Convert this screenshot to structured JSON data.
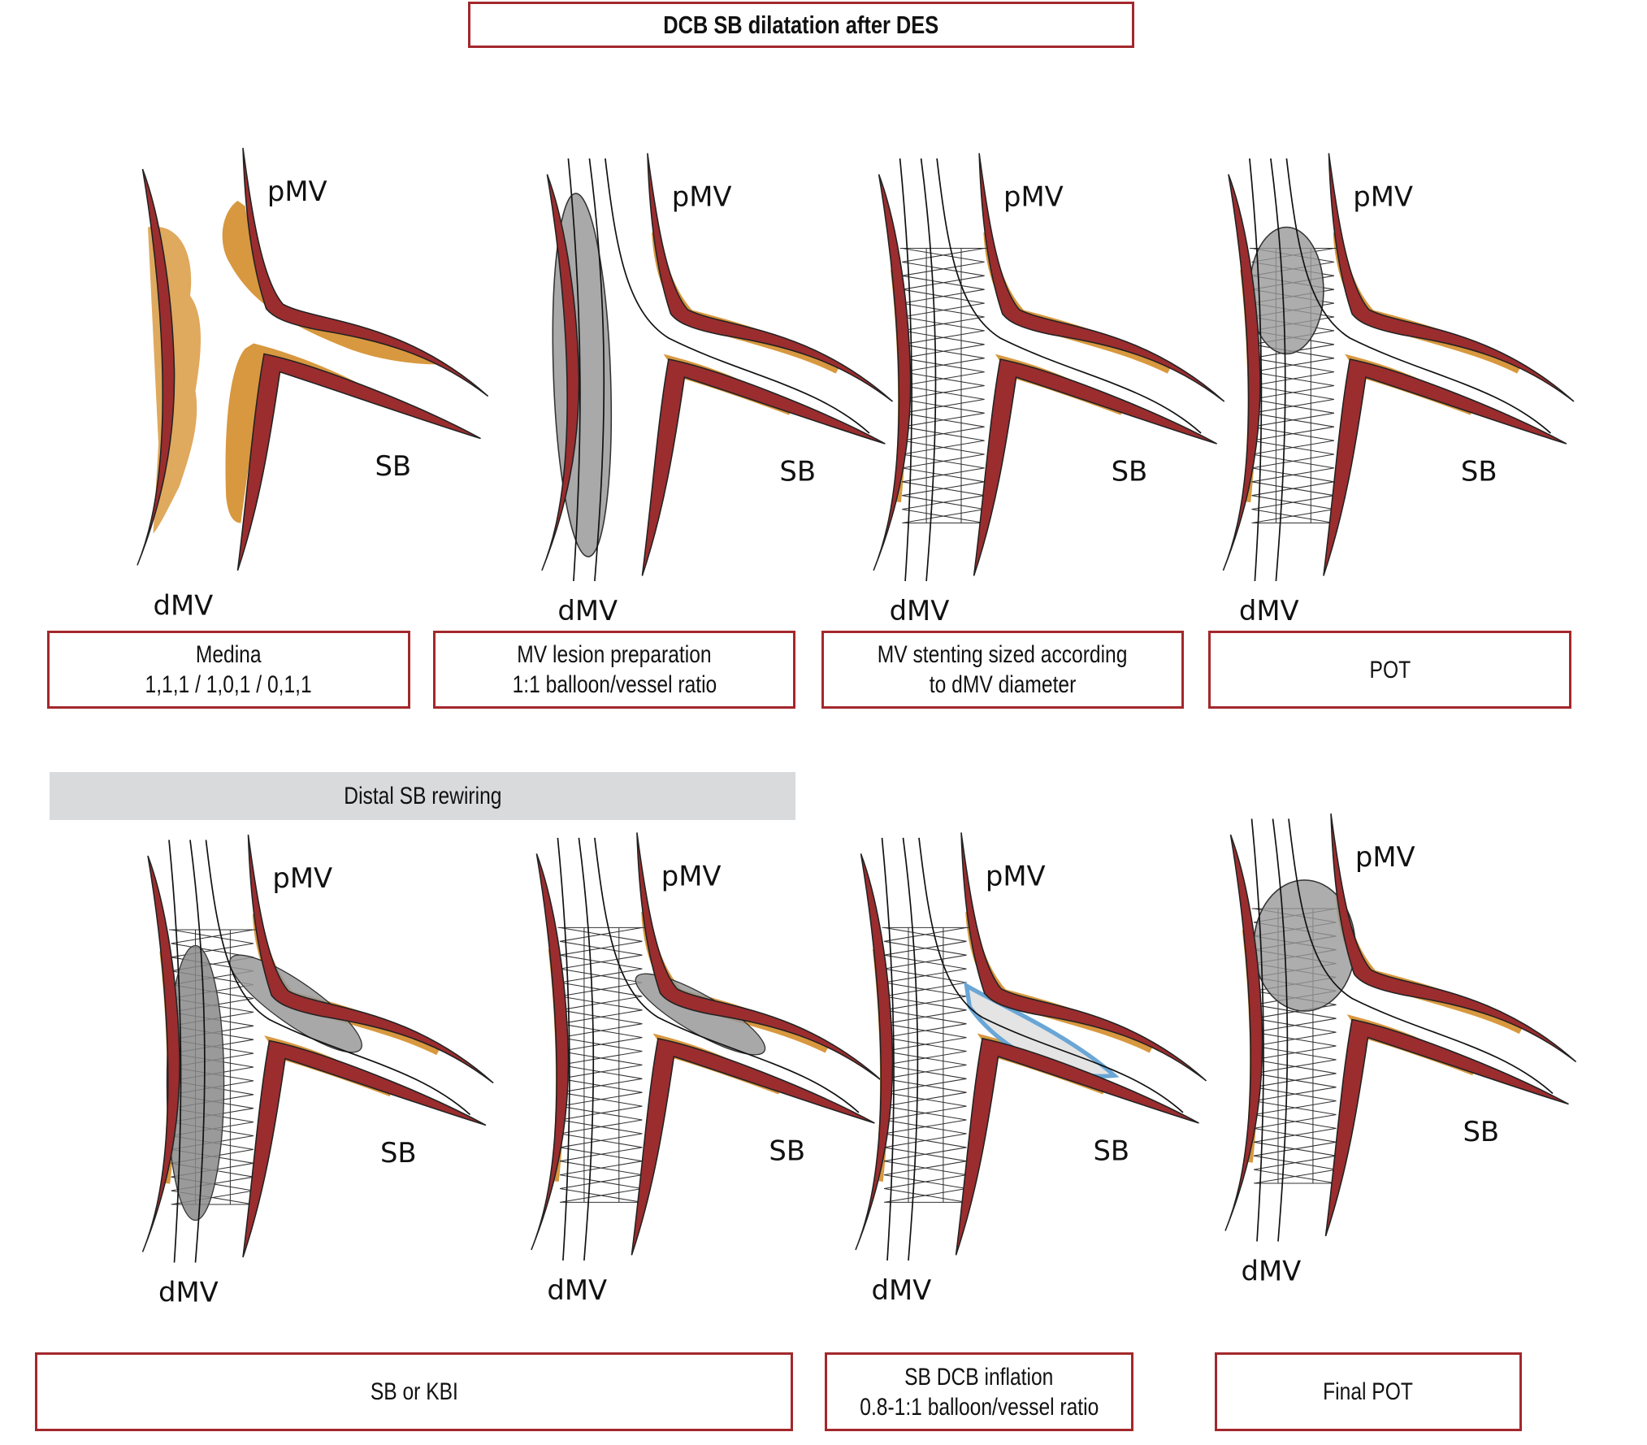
{
  "title": "DCB SB dilatation after DES",
  "vessel_labels": {
    "proximal": "pMV",
    "distal": "dMV",
    "side_branch": "SB"
  },
  "top_row_captions": [
    {
      "line1": "Medina",
      "line2": "1,1,1 / 1,0,1 / 0,1,1"
    },
    {
      "line1": "MV lesion preparation",
      "line2": "1:1 balloon/vessel ratio"
    },
    {
      "line1": "MV stenting sized according",
      "line2": "to dMV diameter"
    },
    {
      "line1": "POT",
      "line2": ""
    }
  ],
  "section_banner": "Distal SB rewiring",
  "bottom_row_captions": [
    {
      "line1": "SB or KBI",
      "line2": ""
    },
    {
      "line1": "SB DCB inflation",
      "line2": "0.8-1:1 balloon/vessel ratio"
    },
    {
      "line1": "Final POT",
      "line2": ""
    }
  ],
  "colors": {
    "vessel_wall": "#9b2d2f",
    "plaque": "#d8983f",
    "balloon": "#a9a9a9",
    "dcb_outline": "#6aa6d6",
    "frame": "#a3282c",
    "banner": "#d9dadb"
  }
}
